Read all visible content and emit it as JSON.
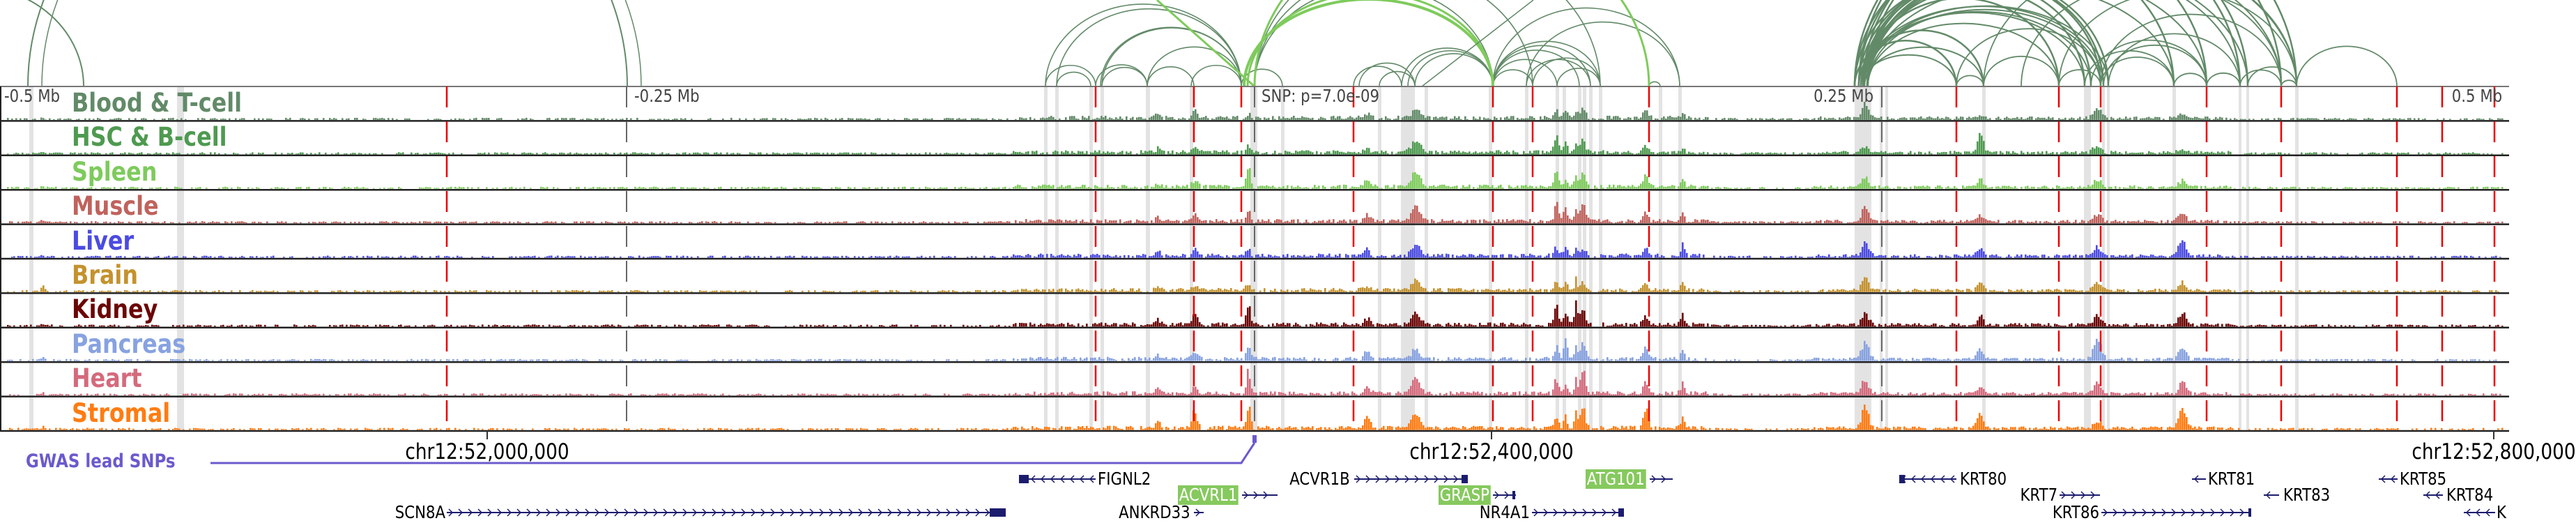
{
  "tracks": [
    {
      "label": "Blood & T-cell",
      "color": "#628a68"
    },
    {
      "label": "HSC & B-cell",
      "color": "#4e9a50"
    },
    {
      "label": "Spleen",
      "color": "#7ecb5c"
    },
    {
      "label": "Muscle",
      "color": "#c0625c"
    },
    {
      "label": "Liver",
      "color": "#4b4be2"
    },
    {
      "label": "Brain",
      "color": "#c4922e"
    },
    {
      "label": "Kidney",
      "color": "#6b0505"
    },
    {
      "label": "Pancreas",
      "color": "#87a2e0"
    },
    {
      "label": "Heart",
      "color": "#d46a7c"
    },
    {
      "label": "Stromal",
      "color": "#ff7c12"
    }
  ],
  "scale_labels": {
    "minus_half": "-0.5 Mb",
    "minus_quarter": "-0.25 Mb",
    "plus_quarter": "0.25 Mb",
    "plus_half": "0.5 Mb"
  },
  "snp_label": "SNP: p=7.0e-09",
  "axis": {
    "tick1": "chr12:52,000,000",
    "tick2": "chr12:52,400,000",
    "tick3": "chr12:52,800,000"
  },
  "gwas_label": "GWAS lead SNPs",
  "genes": {
    "fignl2": "FIGNL2",
    "acvr1b": "ACVR1B",
    "atg101": "ATG101",
    "acvrl1": "ACVRL1",
    "grasp": "GRASP",
    "ankrd33": "ANKRD33",
    "nr4a1": "NR4A1",
    "scn8a": "SCN8A",
    "krt80": "KRT80",
    "krt81": "KRT81",
    "krt85": "KRT85",
    "krt7": "KRT7",
    "krt83": "KRT83",
    "krt84": "KRT84",
    "krt86": "KRT86",
    "krt_clipped": "K"
  },
  "colors": {
    "arc_dark": "#628a68",
    "arc_light": "#7ecb5c",
    "gene": "#1c1c6e",
    "gwas": "#6a5acd",
    "enhancer_line": "#ee0000",
    "highlight_band": "#e3e3e3"
  }
}
